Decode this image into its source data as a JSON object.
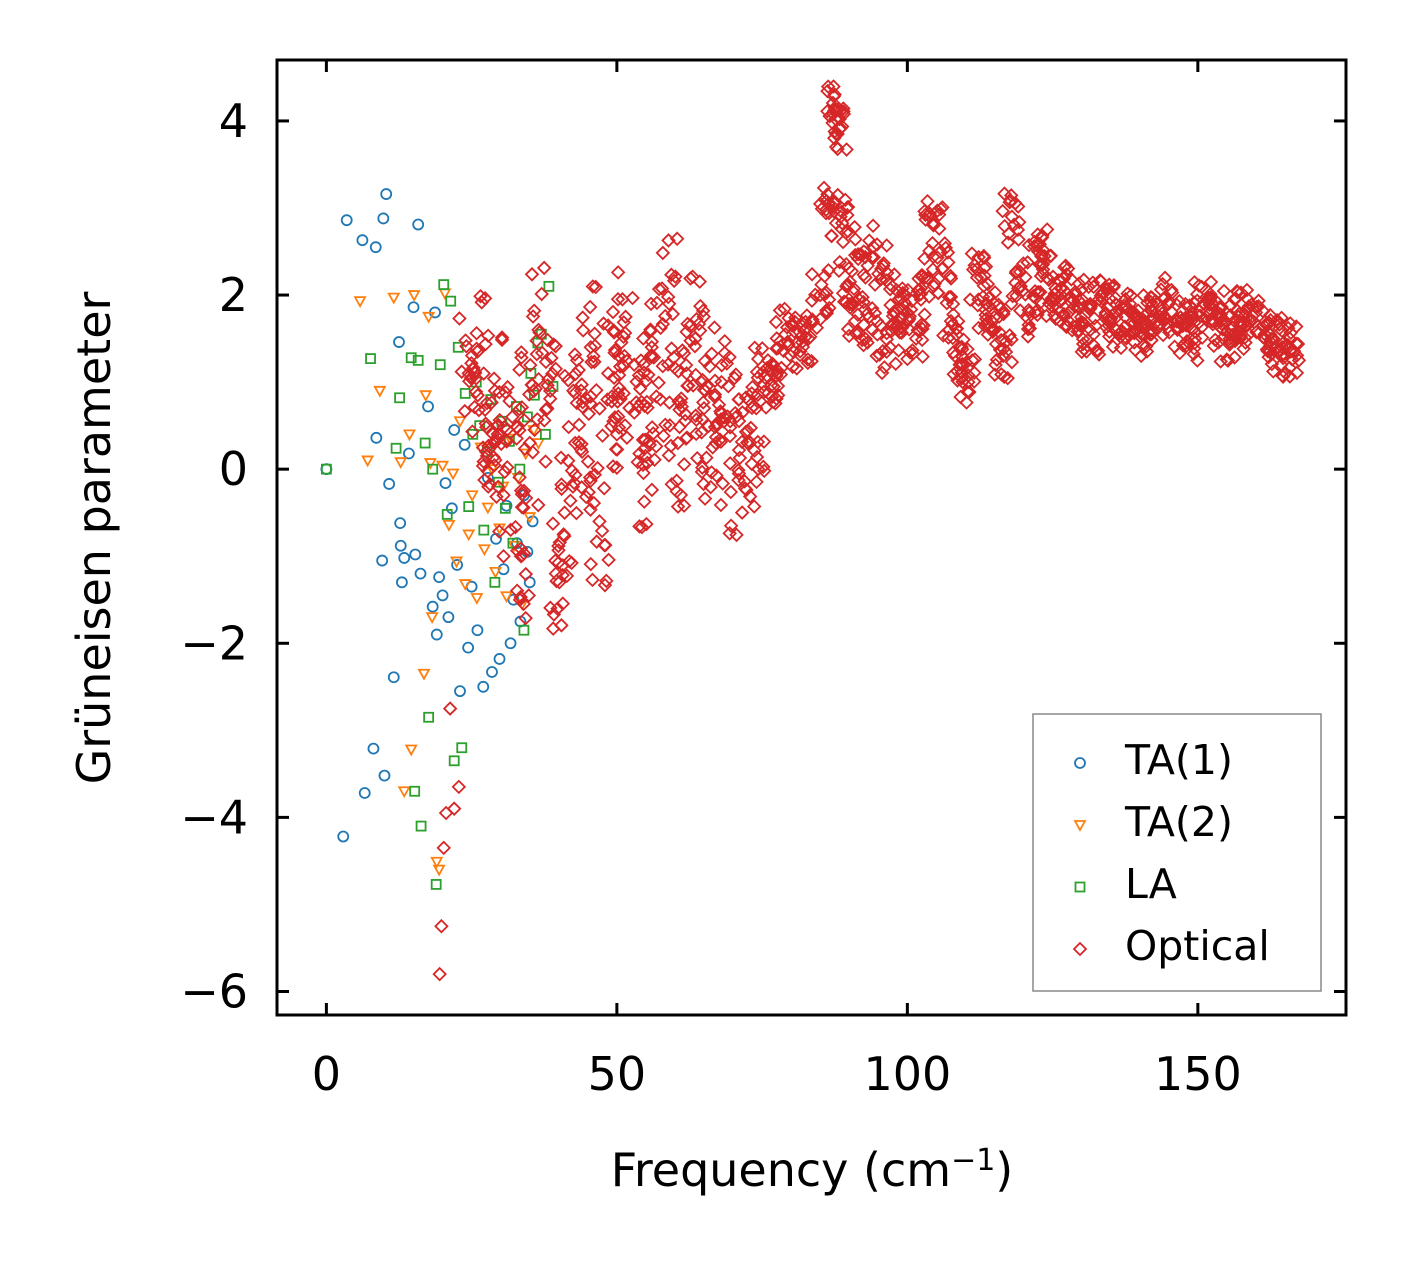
{
  "chart_data": {
    "type": "scatter",
    "title": "",
    "xlabel": "Frequency (cm",
    "xlabel_sup": "−1",
    "xlabel_close": ")",
    "ylabel": "Grüneisen parameter",
    "xlim": [
      -8.5,
      175.5
    ],
    "ylim": [
      -6.27,
      4.7
    ],
    "xticks": [
      0,
      50,
      100,
      150
    ],
    "xtick_labels": [
      "0",
      "50",
      "100",
      "150"
    ],
    "yticks": [
      -6,
      -4,
      -2,
      0,
      2,
      4
    ],
    "ytick_labels": [
      "−6",
      "−4",
      "−2",
      "0",
      "2",
      "4"
    ],
    "grid": false,
    "legend_position": "lower-right",
    "series": [
      {
        "name": "TA(1)",
        "marker": "circle",
        "color": "#1f77b4",
        "x": [
          0,
          2.9,
          3.5,
          6.2,
          6.6,
          8.1,
          8.5,
          8.6,
          9.6,
          9.8,
          10.0,
          10.3,
          10.8,
          11.6,
          12.5,
          12.7,
          12.8,
          13.0,
          13.4,
          14.2,
          15.0,
          15.3,
          15.8,
          16.2,
          17.5,
          18.3,
          18.7,
          19.0,
          19.4,
          20.0,
          20.5,
          21.0,
          21.6,
          22.0,
          22.5,
          23.0,
          23.8,
          24.4,
          25.0,
          26.0,
          27.0,
          27.8,
          28.5,
          29.2,
          29.8,
          30.5,
          31.0,
          31.7,
          32.2,
          32.8,
          33.4,
          34.0,
          34.6,
          35.0,
          35.5
        ],
        "y": [
          0.0,
          -4.22,
          2.86,
          2.63,
          -3.72,
          -3.21,
          2.55,
          0.36,
          -1.05,
          2.88,
          -3.52,
          3.16,
          -0.17,
          -2.39,
          1.46,
          -0.62,
          -0.88,
          -1.3,
          -1.02,
          0.18,
          1.86,
          -0.98,
          2.81,
          -1.2,
          0.72,
          -1.58,
          1.8,
          -1.9,
          -1.24,
          -1.45,
          -0.16,
          -1.7,
          -0.45,
          0.45,
          -1.1,
          -2.55,
          0.28,
          -2.05,
          -1.35,
          -1.85,
          -2.5,
          -0.1,
          -2.33,
          -0.8,
          -2.18,
          -1.15,
          -0.42,
          -2.0,
          -1.5,
          -0.85,
          -1.75,
          -0.3,
          -0.95,
          -1.3,
          -0.6
        ]
      },
      {
        "name": "TA(2)",
        "marker": "triangle-down",
        "color": "#ff7f0e",
        "x": [
          5.8,
          7.1,
          9.2,
          11.6,
          12.8,
          13.4,
          14.3,
          14.6,
          15.1,
          16.8,
          17.1,
          17.6,
          17.9,
          18.2,
          19.0,
          19.4,
          20.0,
          20.4,
          21.1,
          21.8,
          22.4,
          23.0,
          23.9,
          24.5,
          25.1,
          25.9,
          26.6,
          27.2,
          27.8,
          28.5,
          29.1,
          29.8,
          30.4,
          31.0,
          31.6,
          32.3,
          33.0,
          33.7,
          34.3,
          35.0,
          35.7,
          36.5
        ],
        "y": [
          1.93,
          0.1,
          0.9,
          1.97,
          0.08,
          -3.7,
          0.4,
          -3.22,
          2.0,
          -2.35,
          0.85,
          1.75,
          0.07,
          -1.7,
          -4.51,
          -4.6,
          0.04,
          2.02,
          -0.64,
          -0.05,
          -1.06,
          0.55,
          -1.32,
          -0.75,
          -0.3,
          -1.48,
          0.25,
          -0.92,
          -0.44,
          0.0,
          -1.18,
          -0.68,
          -0.2,
          -1.46,
          0.35,
          -0.88,
          -0.1,
          -1.55,
          0.18,
          -0.55,
          0.45,
          0.3
        ]
      },
      {
        "name": "LA",
        "marker": "square",
        "color": "#2ca02c",
        "x": [
          0,
          7.6,
          12.0,
          12.6,
          14.6,
          15.2,
          15.8,
          16.3,
          17.0,
          17.6,
          18.3,
          18.9,
          19.6,
          20.2,
          20.8,
          21.4,
          22.0,
          22.7,
          23.3,
          23.9,
          24.5,
          25.2,
          25.8,
          26.4,
          27.1,
          27.7,
          28.3,
          29.0,
          29.6,
          30.2,
          30.8,
          31.5,
          32.1,
          32.7,
          33.3,
          34.0,
          34.6,
          35.2,
          35.8,
          36.4,
          37.0,
          37.7,
          38.3,
          39.0
        ],
        "y": [
          0.0,
          1.27,
          0.24,
          0.82,
          1.28,
          -3.7,
          1.25,
          -4.1,
          0.3,
          -2.85,
          0.0,
          -4.77,
          1.2,
          2.12,
          -0.52,
          1.93,
          -3.35,
          1.4,
          -3.2,
          0.87,
          -0.43,
          0.4,
          1.0,
          0.5,
          -0.7,
          0.2,
          0.8,
          -1.3,
          -0.15,
          0.55,
          -0.45,
          0.32,
          -0.85,
          0.72,
          0.0,
          -1.85,
          0.6,
          1.1,
          0.85,
          1.45,
          1.55,
          0.4,
          2.1,
          0.95
        ]
      },
      {
        "name": "Optical",
        "marker": "diamond",
        "color": "#d62728",
        "x": [
          19.5,
          19.8,
          20.2,
          20.6,
          21.3,
          22.0,
          22.8,
          24.5,
          26.0,
          27.5,
          29.0,
          30.5,
          32.0,
          33.5,
          35.0,
          36.5,
          38.0,
          39.5,
          41.0,
          42.5,
          44.0,
          45.5,
          47.0,
          48.5,
          50.0,
          51.5,
          53.0,
          54.5,
          56.0,
          57.5,
          59.0,
          60.5,
          62.0,
          63.5,
          65.0,
          66.5,
          68.0,
          69.5,
          71.0,
          72.5,
          74.0,
          75.5,
          77.0,
          79.0,
          81.0,
          83.0,
          85.0,
          86.5,
          87.5,
          88.0,
          88.5,
          89.5,
          91.0,
          92.5,
          94.0,
          95.5,
          97.0,
          98.5,
          100.0,
          101.5,
          103.0,
          104.5,
          106.0,
          107.5,
          109.0,
          110.5,
          112.0,
          113.5,
          115.0,
          116.5,
          118.0,
          119.5,
          121.0,
          122.5,
          124.0,
          125.5,
          127.0,
          128.5,
          130.0,
          131.5,
          133.0,
          134.5,
          136.0,
          137.5,
          139.0,
          140.5,
          142.0,
          143.5,
          145.0,
          146.5,
          148.0,
          149.5,
          151.0,
          152.5,
          154.0,
          155.5,
          157.0,
          158.5,
          160.0,
          161.5,
          163.0,
          164.5,
          166.0
        ],
        "y": [
          -5.8,
          -5.25,
          -4.35,
          -3.95,
          -2.75,
          -3.9,
          -3.65,
          1.1,
          1.35,
          0.2,
          0.9,
          -0.3,
          0.6,
          -1.0,
          0.3,
          1.6,
          0.7,
          -1.2,
          -0.5,
          0.9,
          0.2,
          1.4,
          -0.6,
          1.1,
          0.4,
          1.75,
          0.65,
          0.05,
          1.4,
          0.8,
          1.9,
          0.3,
          1.1,
          1.5,
          0.7,
          0.25,
          1.0,
          0.55,
          -0.05,
          0.3,
          0.7,
          1.05,
          0.95,
          1.55,
          1.45,
          1.5,
          2.0,
          3.05,
          4.15,
          3.85,
          2.9,
          2.1,
          1.7,
          2.5,
          1.6,
          2.3,
          1.4,
          1.95,
          1.8,
          1.5,
          2.2,
          2.8,
          2.3,
          1.7,
          1.2,
          1.0,
          2.2,
          1.9,
          1.6,
          1.3,
          2.9,
          2.1,
          1.8,
          2.5,
          2.2,
          1.95,
          2.05,
          1.85,
          1.9,
          1.6,
          1.95,
          1.85,
          1.6,
          1.75,
          1.8,
          1.55,
          1.7,
          1.75,
          1.9,
          1.6,
          1.65,
          1.5,
          1.9,
          1.7,
          1.85,
          1.5,
          1.75,
          1.65,
          1.8,
          1.55,
          1.5,
          1.4,
          1.35
        ]
      }
    ]
  }
}
